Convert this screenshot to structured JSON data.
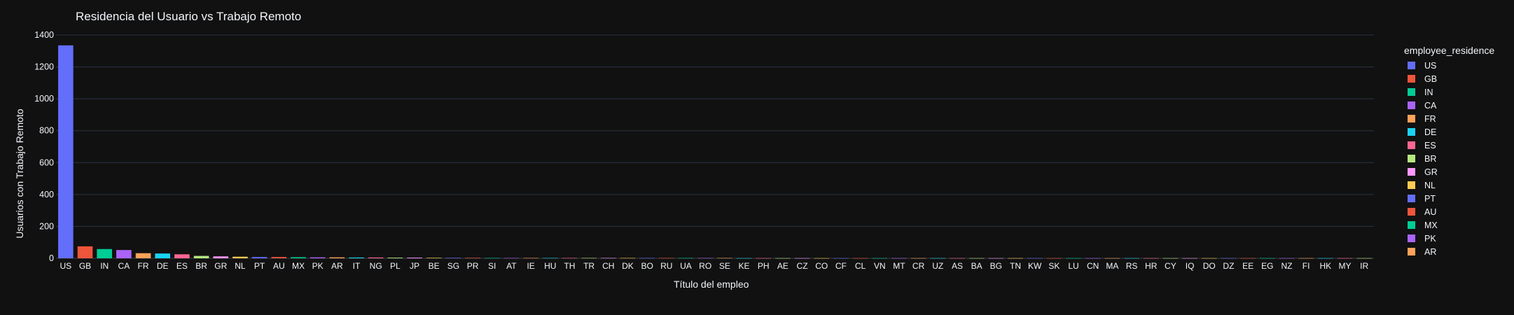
{
  "chart_data": {
    "type": "bar",
    "title": "Residencia del Usuario vs Trabajo Remoto",
    "xlabel": "Título del empleo",
    "ylabel": "Usuarios con Trabajo Remoto",
    "ylim": [
      0,
      1400
    ],
    "yticks": [
      0,
      200,
      400,
      600,
      800,
      1000,
      1200,
      1400
    ],
    "grid": true,
    "legend_title": "employee_residence",
    "legend_position": "right",
    "categories": [
      "US",
      "GB",
      "IN",
      "CA",
      "FR",
      "DE",
      "ES",
      "BR",
      "GR",
      "NL",
      "PT",
      "AU",
      "MX",
      "PK",
      "AR",
      "IT",
      "NG",
      "PL",
      "JP",
      "BE",
      "SG",
      "PR",
      "SI",
      "AT",
      "IE",
      "HU",
      "TH",
      "TR",
      "CH",
      "DK",
      "BO",
      "RU",
      "UA",
      "RO",
      "SE",
      "KE",
      "PH",
      "AE",
      "CZ",
      "CO",
      "CF",
      "CL",
      "VN",
      "MT",
      "CR",
      "UZ",
      "AS",
      "BA",
      "BG",
      "TN",
      "KW",
      "SK",
      "LU",
      "CN",
      "MA",
      "RS",
      "HR",
      "CY",
      "IQ",
      "DO",
      "DZ",
      "EE",
      "EG",
      "NZ",
      "FI",
      "HK",
      "MY",
      "IR"
    ],
    "values": [
      1335,
      75,
      58,
      52,
      32,
      30,
      25,
      15,
      12,
      10,
      8,
      8,
      7,
      6,
      6,
      5,
      5,
      4,
      4,
      3,
      3,
      3,
      2,
      2,
      2,
      2,
      2,
      2,
      2,
      2,
      2,
      2,
      2,
      2,
      2,
      1,
      1,
      1,
      1,
      1,
      1,
      1,
      1,
      1,
      1,
      1,
      1,
      1,
      1,
      1,
      1,
      1,
      1,
      1,
      1,
      1,
      1,
      1,
      1,
      1,
      1,
      1,
      1,
      1,
      1,
      1,
      1,
      1
    ],
    "legend_entries": [
      "US",
      "GB",
      "IN",
      "CA",
      "FR",
      "DE",
      "ES",
      "BR",
      "GR",
      "NL",
      "PT",
      "AU",
      "MX",
      "PK",
      "AR"
    ],
    "colors": [
      "#636efa",
      "#EF553B",
      "#00cc96",
      "#ab63fa",
      "#FFA15A",
      "#19d3f3",
      "#FF6692",
      "#B6E880",
      "#FF97FF",
      "#FECB52"
    ]
  }
}
